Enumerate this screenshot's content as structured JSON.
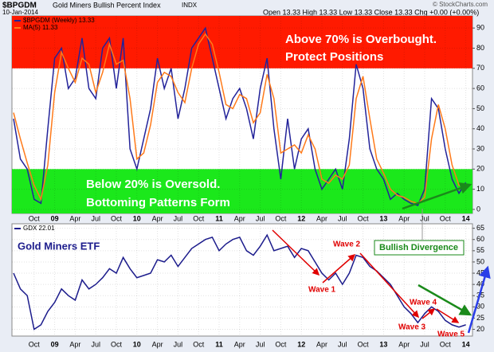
{
  "chart_data": [
    {
      "type": "line",
      "symbol": "$BPGDM",
      "title": "Gold Miners Bullish Percent Index",
      "exchange": "INDX",
      "date": "10-Jan-2014",
      "quote": "Open 13.33 High 13.33 Low 13.33 Close 13.33 Chg +0.00 (+0.00%)",
      "source": "© StockCharts.com",
      "categories": [
        null,
        null,
        null,
        "Oct",
        null,
        null,
        "09",
        null,
        null,
        "Apr",
        null,
        null,
        "Jul",
        null,
        null,
        "Oct",
        null,
        null,
        "10",
        null,
        null,
        "Apr",
        null,
        null,
        "Jul",
        null,
        null,
        "Oct",
        null,
        null,
        "11",
        null,
        null,
        "Apr",
        null,
        null,
        "Jul",
        null,
        null,
        "Oct",
        null,
        null,
        "12",
        null,
        null,
        "Apr",
        null,
        null,
        "Jul",
        null,
        null,
        "Oct",
        null,
        null,
        "13",
        null,
        null,
        "Apr",
        null,
        null,
        "Jul",
        null,
        null,
        "Oct",
        null,
        null,
        "14"
      ],
      "series": [
        {
          "name": "$BPGDM (Weekly) 13.33",
          "color": "#23239a",
          "values": [
            45,
            25,
            20,
            5,
            3,
            40,
            75,
            80,
            60,
            65,
            85,
            60,
            55,
            80,
            85,
            60,
            85,
            30,
            20,
            35,
            50,
            75,
            60,
            70,
            45,
            60,
            80,
            85,
            90,
            75,
            60,
            45,
            55,
            60,
            50,
            35,
            60,
            75,
            40,
            15,
            45,
            20,
            35,
            40,
            20,
            10,
            15,
            20,
            10,
            35,
            72,
            60,
            30,
            20,
            15,
            5,
            8,
            5,
            3,
            2,
            10,
            55,
            50,
            30,
            15,
            8,
            13.33
          ]
        },
        {
          "name": "MA(5) 11.33",
          "color": "#ff7a1a",
          "values": [
            48,
            35,
            23,
            12,
            5,
            22,
            58,
            78,
            70,
            63,
            75,
            72,
            58,
            68,
            82,
            72,
            74,
            55,
            25,
            28,
            42,
            63,
            68,
            66,
            58,
            53,
            70,
            82,
            87,
            82,
            68,
            52,
            50,
            57,
            55,
            43,
            48,
            67,
            55,
            28,
            30,
            32,
            28,
            37,
            30,
            15,
            13,
            17,
            15,
            22,
            55,
            66,
            45,
            25,
            18,
            10,
            7,
            6,
            4,
            3,
            6,
            35,
            52,
            40,
            22,
            12,
            11.33
          ]
        }
      ],
      "overbought": 70,
      "oversold": 20,
      "ylim": [
        -2,
        96
      ],
      "yticks": [
        0,
        10,
        20,
        30,
        40,
        50,
        60,
        70,
        80,
        90
      ],
      "grid": true,
      "annotations": [
        {
          "text": "Above 70% is Overbought."
        },
        {
          "text": "Protect Positions"
        },
        {
          "text": "Below 20% is Oversold."
        },
        {
          "text": "Bottoming Patterns Form"
        }
      ]
    },
    {
      "type": "line",
      "title": "Gold Miners ETF",
      "categories": [
        null,
        null,
        null,
        "Oct",
        null,
        null,
        "09",
        null,
        null,
        "Apr",
        null,
        null,
        "Jul",
        null,
        null,
        "Oct",
        null,
        null,
        "10",
        null,
        null,
        "Apr",
        null,
        null,
        "Jul",
        null,
        null,
        "Oct",
        null,
        null,
        "11",
        null,
        null,
        "Apr",
        null,
        null,
        "Jul",
        null,
        null,
        "Oct",
        null,
        null,
        "12",
        null,
        null,
        "Apr",
        null,
        null,
        "Jul",
        null,
        null,
        "Oct",
        null,
        null,
        "13",
        null,
        null,
        "Apr",
        null,
        null,
        "Jul",
        null,
        null,
        "Oct",
        null,
        null,
        "14"
      ],
      "series": [
        {
          "name": "GDX 22.01",
          "color": "#1c1c8c",
          "values": [
            45,
            38,
            35,
            20,
            22,
            28,
            32,
            38,
            35,
            33,
            42,
            38,
            40,
            43,
            47,
            45,
            52,
            47,
            43,
            44,
            45,
            51,
            50,
            53,
            48,
            52,
            56,
            58,
            60,
            61,
            55,
            58,
            60,
            61,
            55,
            53,
            57,
            62,
            55,
            56,
            57,
            52,
            56,
            55,
            50,
            45,
            42,
            45,
            40,
            45,
            53,
            52,
            48,
            46,
            43,
            40,
            35,
            30,
            27,
            23,
            27,
            30,
            28,
            24,
            22,
            21,
            22.01
          ]
        }
      ],
      "ylim": [
        17,
        67
      ],
      "yticks": [
        20,
        25,
        30,
        35,
        40,
        45,
        50,
        55,
        60,
        65
      ],
      "grid": true,
      "annotations": [
        {
          "text": "Wave 1"
        },
        {
          "text": "Wave 2"
        },
        {
          "text": "Wave 3"
        },
        {
          "text": "Wave 4"
        },
        {
          "text": "Wave 5"
        },
        {
          "text": "Bullish Divergence"
        }
      ]
    }
  ]
}
